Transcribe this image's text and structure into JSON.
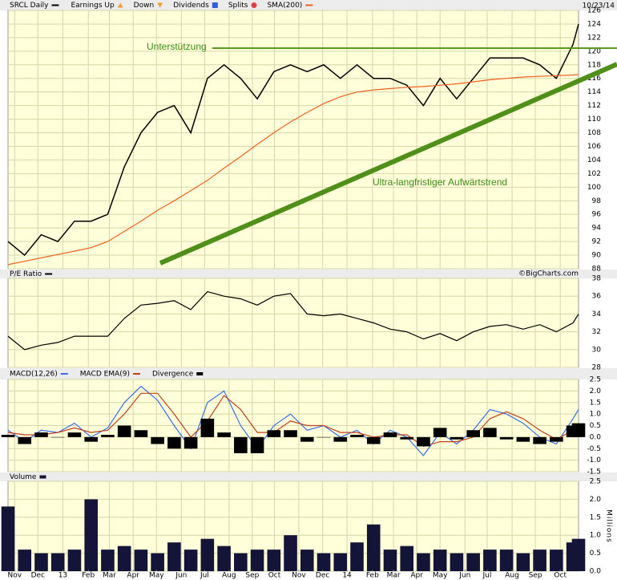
{
  "header_date": "10/23/14",
  "copyright": "©BigCharts.com",
  "annotations": [
    "Unterstützung",
    "Ultra-langfristiger Aufwärtstrend"
  ],
  "chart_data": [
    {
      "type": "line",
      "x": [
        0,
        3,
        6,
        9,
        12,
        15,
        18,
        21,
        24,
        27,
        30,
        33,
        36,
        39,
        42,
        45,
        48,
        51,
        54,
        57,
        60,
        63,
        66,
        69,
        72,
        75,
        78,
        81,
        84,
        87,
        90,
        93,
        96,
        99,
        102,
        103
      ],
      "xlim": [
        0,
        103
      ],
      "ylim": [
        88,
        126
      ],
      "yticks": [
        88,
        90,
        92,
        94,
        96,
        98,
        100,
        102,
        104,
        106,
        108,
        110,
        112,
        114,
        116,
        118,
        120,
        122,
        124,
        126
      ],
      "grid": true,
      "series": [
        {
          "name": "SRCL Daily",
          "color": "#000000",
          "values": [
            92,
            90,
            93,
            92,
            95,
            95,
            96,
            103,
            108,
            111,
            112,
            108,
            116,
            118,
            116,
            113,
            117,
            118,
            117,
            118,
            116,
            118,
            116,
            116,
            115,
            112,
            116,
            113,
            116,
            119,
            119,
            119,
            118,
            116,
            121,
            124
          ]
        },
        {
          "name": "SMA(200)",
          "color": "#f06020",
          "values": [
            88.6,
            89.1,
            89.6,
            90.1,
            90.6,
            91.1,
            92,
            93.5,
            95,
            96.6,
            98,
            99.5,
            101,
            102.8,
            104.5,
            106.3,
            108,
            109.6,
            111,
            112.3,
            113.3,
            114,
            114.3,
            114.5,
            114.7,
            114.8,
            115,
            115.2,
            115.5,
            115.8,
            116,
            116.2,
            116.3,
            116.4,
            116.5,
            116.6
          ]
        }
      ],
      "markers": [
        {
          "name": "Earnings Up",
          "color": "#f0a030",
          "shape": "triangle-up"
        },
        {
          "name": "Down",
          "color": "#f0a030",
          "shape": "triangle-down"
        },
        {
          "name": "Dividends",
          "color": "#3060e0",
          "shape": "square"
        },
        {
          "name": "Splits",
          "color": "#e04040",
          "shape": "circle"
        }
      ]
    },
    {
      "type": "line",
      "x": [
        0,
        3,
        6,
        9,
        12,
        15,
        18,
        21,
        24,
        27,
        30,
        33,
        36,
        39,
        42,
        45,
        48,
        51,
        54,
        57,
        60,
        63,
        66,
        69,
        72,
        75,
        78,
        81,
        84,
        87,
        90,
        93,
        96,
        99,
        102,
        103
      ],
      "xlim": [
        0,
        103
      ],
      "ylim": [
        28,
        38
      ],
      "yticks": [
        28,
        30,
        32,
        34,
        36,
        38
      ],
      "grid": true,
      "series": [
        {
          "name": "P/E Ratio",
          "color": "#000000",
          "values": [
            31.5,
            30,
            30.5,
            30.8,
            31.5,
            31.5,
            31.5,
            33.5,
            35,
            35.2,
            35.5,
            34.5,
            36.5,
            36,
            35.7,
            35,
            36,
            36.3,
            34,
            33.8,
            34,
            33.5,
            33,
            32.3,
            32,
            31.2,
            31.8,
            31,
            32,
            32.6,
            32.8,
            32.3,
            32.8,
            32,
            33,
            34
          ]
        }
      ]
    },
    {
      "type": "line",
      "x": [
        0,
        3,
        6,
        9,
        12,
        15,
        18,
        21,
        24,
        27,
        30,
        33,
        36,
        39,
        42,
        45,
        48,
        51,
        54,
        57,
        60,
        63,
        66,
        69,
        72,
        75,
        78,
        81,
        84,
        87,
        90,
        93,
        96,
        99,
        102,
        103
      ],
      "xlim": [
        0,
        103
      ],
      "ylim": [
        -1.5,
        2.5
      ],
      "yticks": [
        -1.5,
        -0.5,
        {
          "value": -1,
          "label": "-1.0"
        },
        {
          "value": 0,
          "label": "0.0"
        },
        0.5,
        {
          "value": 1,
          "label": "1.0"
        },
        1.5,
        {
          "value": 2,
          "label": "2.0"
        },
        2.5
      ],
      "grid": true,
      "series": [
        {
          "name": "MACD(12,26)",
          "color": "#3a6ee8",
          "values": [
            0.3,
            -0.2,
            0.3,
            0.2,
            0.6,
            0,
            0.4,
            1.5,
            2.2,
            1.6,
            0.5,
            -0.5,
            1.5,
            2.0,
            0.5,
            -0.5,
            0.5,
            1.0,
            0.3,
            0.5,
            0,
            0.3,
            -0.3,
            0.3,
            0,
            -0.8,
            0.2,
            -0.3,
            0.3,
            1.2,
            1.0,
            0.6,
            0,
            -0.3,
            0.8,
            1.2
          ]
        },
        {
          "name": "MACD EMA(9)",
          "color": "#c04020",
          "values": [
            0.2,
            0.1,
            0.1,
            0.2,
            0.4,
            0.2,
            0.3,
            1.0,
            1.9,
            1.9,
            1.0,
            0.0,
            0.7,
            1.8,
            1.2,
            0.2,
            0.2,
            0.7,
            0.5,
            0.5,
            0.2,
            0.2,
            0,
            0.1,
            0.1,
            -0.4,
            -0.2,
            -0.2,
            0,
            0.8,
            1.1,
            0.8,
            0.3,
            -0.1,
            0.3,
            0.6
          ]
        },
        {
          "name": "Divergence",
          "color": "#000000",
          "type": "bar",
          "values": [
            0.1,
            -0.3,
            0.2,
            0,
            0.2,
            -0.2,
            0.1,
            0.5,
            0.3,
            -0.3,
            -0.5,
            -0.5,
            0.8,
            0.2,
            -0.7,
            -0.7,
            0.3,
            0.3,
            -0.2,
            0,
            -0.2,
            0.1,
            -0.3,
            0.2,
            -0.1,
            -0.4,
            0.4,
            -0.1,
            0.3,
            0.4,
            -0.1,
            -0.2,
            -0.3,
            -0.2,
            0.5,
            0.6
          ]
        }
      ]
    },
    {
      "type": "bar",
      "x": [
        0,
        3,
        6,
        9,
        12,
        15,
        18,
        21,
        24,
        27,
        30,
        33,
        36,
        39,
        42,
        45,
        48,
        51,
        54,
        57,
        60,
        63,
        66,
        69,
        72,
        75,
        78,
        81,
        84,
        87,
        90,
        93,
        96,
        99,
        102,
        103
      ],
      "xlim": [
        0,
        103
      ],
      "ylim": [
        0,
        2.5
      ],
      "yticks": [
        {
          "value": 0,
          "label": "0.0"
        },
        0.5,
        {
          "value": 1,
          "label": "1.0"
        },
        1.5,
        {
          "value": 2,
          "label": "2.0"
        },
        2.5
      ],
      "ylabel": "Millions",
      "grid": true,
      "xticks": [
        {
          "value": 1.2,
          "label": "Nov"
        },
        {
          "value": 5.4,
          "label": "Dec"
        },
        {
          "value": 9.9,
          "label": "13"
        },
        {
          "value": 14.5,
          "label": "Feb"
        },
        {
          "value": 18.3,
          "label": "Mar"
        },
        {
          "value": 22.6,
          "label": "Apr"
        },
        {
          "value": 26.8,
          "label": "May"
        },
        {
          "value": 31.3,
          "label": "Jun"
        },
        {
          "value": 35.5,
          "label": "Jul"
        },
        {
          "value": 39.9,
          "label": "Aug"
        },
        {
          "value": 44.1,
          "label": "Sep"
        },
        {
          "value": 48.1,
          "label": "Oct"
        },
        {
          "value": 52.5,
          "label": "Nov"
        },
        {
          "value": 56.8,
          "label": "Dec"
        },
        {
          "value": 61.2,
          "label": "14"
        },
        {
          "value": 65.8,
          "label": "Feb"
        },
        {
          "value": 69.6,
          "label": "Mar"
        },
        {
          "value": 73.8,
          "label": "Apr"
        },
        {
          "value": 78.0,
          "label": "May"
        },
        {
          "value": 82.5,
          "label": "Jun"
        },
        {
          "value": 86.5,
          "label": "Jul"
        },
        {
          "value": 91.0,
          "label": "Aug"
        },
        {
          "value": 95.2,
          "label": "Sep"
        },
        {
          "value": 99.7,
          "label": "Oct"
        }
      ],
      "series": [
        {
          "name": "Volume",
          "color": "#141438",
          "values": [
            1.8,
            0.6,
            0.5,
            0.5,
            0.6,
            2.0,
            0.6,
            0.7,
            0.6,
            0.5,
            0.8,
            0.6,
            0.9,
            0.7,
            0.5,
            0.6,
            0.6,
            1.0,
            0.6,
            0.5,
            0.5,
            0.8,
            1.3,
            0.6,
            0.7,
            0.5,
            0.6,
            0.5,
            0.5,
            0.6,
            0.6,
            0.5,
            0.6,
            0.6,
            0.8,
            0.9
          ]
        }
      ]
    }
  ]
}
